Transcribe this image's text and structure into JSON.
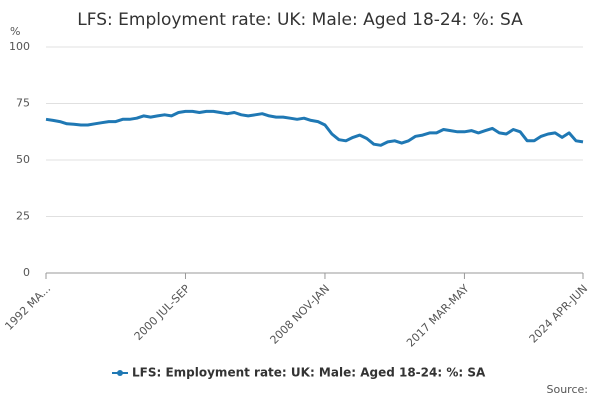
{
  "chart_data": {
    "type": "line",
    "title": "LFS: Employment rate: UK: Male: Aged 18-24: %: SA",
    "y_label": "%",
    "source": "Source:",
    "categories": [
      "1992 MA...",
      null,
      null,
      null,
      null,
      null,
      null,
      null,
      null,
      null,
      null,
      null,
      null,
      null,
      null,
      null,
      null,
      null,
      null,
      null,
      "2000 JUL-SEP",
      null,
      null,
      null,
      null,
      null,
      null,
      null,
      null,
      null,
      null,
      null,
      null,
      null,
      null,
      null,
      null,
      null,
      null,
      null,
      "2008 NOV-JAN",
      null,
      null,
      null,
      null,
      null,
      null,
      null,
      null,
      null,
      null,
      null,
      null,
      null,
      null,
      null,
      null,
      null,
      null,
      null,
      "2017 MAR-MAY",
      null,
      null,
      null,
      null,
      null,
      null,
      null,
      null,
      null,
      null,
      null,
      null,
      null,
      null,
      null,
      null,
      "2024 APR-JUN"
    ],
    "series": [
      {
        "name": "LFS: Employment rate: UK: Male: Aged 18-24: %: SA",
        "color": "#1f78b4",
        "values": [
          68,
          67.5,
          67,
          66,
          65.8,
          65.5,
          65.5,
          66,
          66.5,
          67,
          67,
          68,
          68,
          68.5,
          69.5,
          69,
          69.5,
          70,
          69.5,
          71,
          71.5,
          71.5,
          71,
          71.5,
          71.5,
          71,
          70.5,
          71,
          70,
          69.5,
          70,
          70.5,
          69.5,
          69,
          69,
          68.5,
          68,
          68.5,
          67.5,
          67,
          65.5,
          61.5,
          59,
          58.5,
          60,
          61,
          59.5,
          57,
          56.5,
          58,
          58.5,
          57.5,
          58.5,
          60.5,
          61,
          62,
          62,
          63.5,
          63,
          62.5,
          62.5,
          63,
          62,
          63,
          64,
          62,
          61.5,
          63.5,
          62.5,
          58.5,
          58.5,
          60.5,
          61.5,
          62,
          60,
          62,
          58.5,
          58
        ]
      }
    ],
    "ylim": [
      0,
      100
    ],
    "yticks": [
      0,
      25,
      50,
      75,
      100
    ],
    "grid": true,
    "legend": "bottom"
  }
}
